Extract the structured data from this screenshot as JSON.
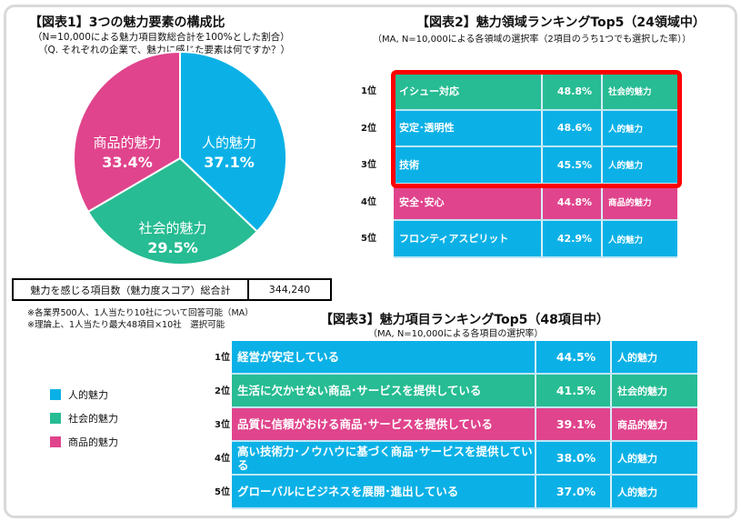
{
  "colors": {
    "human": "#0bb1e6",
    "social": "#27bc93",
    "product": "#e0448c",
    "highlight": "#ff0000"
  },
  "fig1": {
    "title": "【図表1】3つの魅力要素の構成比",
    "subtitle1": "（N=10,000による魅力項目数総合計を100%とした割合）",
    "subtitle2": "（Q. それぞれの企業で、魅力に感じた要素は何ですか？）",
    "score_label": "魅力を感じる項目数（魅力度スコア）総合計",
    "score_value": "344,240",
    "note1": "※各業界500人、1人当たり10社について回答可能（MA）",
    "note2": "※理論上、1人当たり最大48項目×10社　選択可能",
    "legend": [
      "人的魅力",
      "社会的魅力",
      "商品的魅力"
    ]
  },
  "chart_data": {
    "type": "pie",
    "title": "【図表1】3つの魅力要素の構成比",
    "slices": [
      {
        "name": "人的魅力",
        "label": "37.1%",
        "value": 37.1,
        "color": "#0bb1e6"
      },
      {
        "name": "社会的魅力",
        "label": "29.5%",
        "value": 29.5,
        "color": "#27bc93"
      },
      {
        "name": "商品的魅力",
        "label": "33.4%",
        "value": 33.4,
        "color": "#e0448c"
      }
    ]
  },
  "fig2": {
    "title": "【図表2】魅力領域ランキングTop5（24領域中）",
    "subtitle": "（MA, N=10,000による各領域の選択率（2項目のうち1つでも選択した率））",
    "rows": [
      {
        "rank": "1位",
        "name": "イシュー対応",
        "pct": "48.8%",
        "cat": "社会的魅力",
        "color": "#27bc93"
      },
      {
        "rank": "2位",
        "name": "安定･透明性",
        "pct": "48.6%",
        "cat": "人的魅力",
        "color": "#0bb1e6"
      },
      {
        "rank": "3位",
        "name": "技術",
        "pct": "45.5%",
        "cat": "人的魅力",
        "color": "#0bb1e6"
      },
      {
        "rank": "4位",
        "name": "安全･安心",
        "pct": "44.8%",
        "cat": "商品的魅力",
        "color": "#e0448c"
      },
      {
        "rank": "5位",
        "name": "フロンティアスピリット",
        "pct": "42.9%",
        "cat": "人的魅力",
        "color": "#0bb1e6"
      }
    ]
  },
  "fig3": {
    "title": "【図表3】魅力項目ランキングTop5（48項目中）",
    "subtitle": "（MA, N=10,000による各項目の選択率）",
    "rows": [
      {
        "rank": "1位",
        "name": "経営が安定している",
        "pct": "44.5%",
        "cat": "人的魅力",
        "color": "#0bb1e6"
      },
      {
        "rank": "2位",
        "name": "生活に欠かせない商品･サービスを提供している",
        "pct": "41.5%",
        "cat": "社会的魅力",
        "color": "#27bc93"
      },
      {
        "rank": "3位",
        "name": "品質に信頼がおける商品･サービスを提供している",
        "pct": "39.1%",
        "cat": "商品的魅力",
        "color": "#e0448c"
      },
      {
        "rank": "4位",
        "name": "高い技術力･ノウハウに基づく商品･サービスを提供している",
        "pct": "38.0%",
        "cat": "人的魅力",
        "color": "#0bb1e6"
      },
      {
        "rank": "5位",
        "name": "グローバルにビジネスを展開･進出している",
        "pct": "37.0%",
        "cat": "人的魅力",
        "color": "#0bb1e6"
      }
    ]
  }
}
